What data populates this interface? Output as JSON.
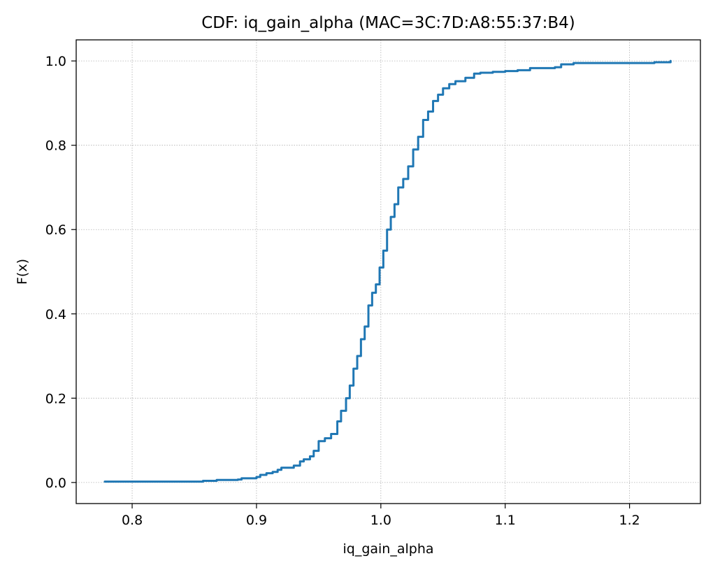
{
  "chart_data": {
    "type": "line",
    "title": "CDF: iq_gain_alpha (MAC=3C:7D:A8:55:37:B4)",
    "xlabel": "iq_gain_alpha",
    "ylabel": "F(x)",
    "xlim": [
      0.755,
      1.257
    ],
    "ylim": [
      -0.05,
      1.05
    ],
    "xticks": [
      0.8,
      0.9,
      1.0,
      1.1,
      1.2
    ],
    "xtick_labels": [
      "0.8",
      "0.9",
      "1.0",
      "1.1",
      "1.2"
    ],
    "yticks": [
      0.0,
      0.2,
      0.4,
      0.6,
      0.8,
      1.0
    ],
    "ytick_labels": [
      "0.0",
      "0.2",
      "0.4",
      "0.6",
      "0.8",
      "1.0"
    ],
    "grid": true,
    "line_color": "#1f77b4",
    "series": [
      {
        "x": [
          0.778,
          0.855,
          0.857,
          0.865,
          0.868,
          0.885,
          0.888,
          0.9,
          0.903,
          0.908,
          0.913,
          0.917,
          0.92,
          0.93,
          0.935,
          0.938,
          0.943,
          0.946,
          0.95,
          0.955,
          0.96,
          0.965,
          0.968,
          0.972,
          0.975,
          0.978,
          0.981,
          0.984,
          0.987,
          0.99,
          0.993,
          0.996,
          0.999,
          1.002,
          1.005,
          1.008,
          1.011,
          1.014,
          1.018,
          1.022,
          1.026,
          1.03,
          1.034,
          1.038,
          1.042,
          1.046,
          1.05,
          1.055,
          1.06,
          1.068,
          1.075,
          1.08,
          1.09,
          1.1,
          1.11,
          1.12,
          1.14,
          1.145,
          1.155,
          1.2,
          1.22,
          1.233
        ],
        "y": [
          0.002,
          0.002,
          0.004,
          0.004,
          0.006,
          0.007,
          0.01,
          0.013,
          0.018,
          0.022,
          0.025,
          0.03,
          0.035,
          0.04,
          0.05,
          0.055,
          0.062,
          0.075,
          0.098,
          0.105,
          0.115,
          0.145,
          0.17,
          0.2,
          0.23,
          0.27,
          0.3,
          0.34,
          0.37,
          0.42,
          0.45,
          0.47,
          0.51,
          0.55,
          0.6,
          0.63,
          0.66,
          0.7,
          0.72,
          0.75,
          0.79,
          0.82,
          0.86,
          0.88,
          0.905,
          0.92,
          0.935,
          0.945,
          0.952,
          0.96,
          0.97,
          0.972,
          0.974,
          0.976,
          0.978,
          0.983,
          0.985,
          0.992,
          0.995,
          0.995,
          0.997,
          1.0
        ]
      }
    ]
  }
}
